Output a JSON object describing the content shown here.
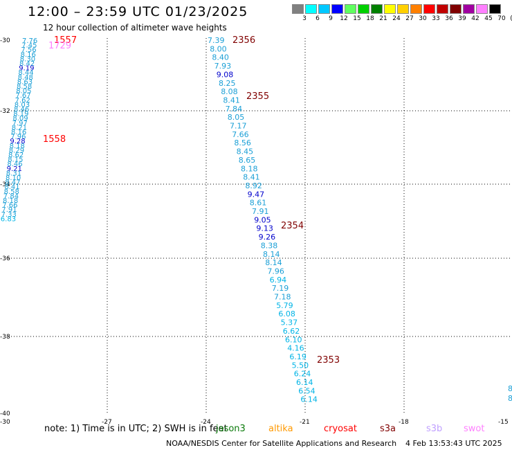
{
  "title": "12:00 – 23:59 UTC 01/23/2025",
  "subtitle": "12 hour collection of altimeter wave heights",
  "colorbar": {
    "unit": "(ft)",
    "labels": [
      "3",
      "6",
      "9",
      "12",
      "15",
      "18",
      "21",
      "24",
      "27",
      "30",
      "33",
      "36",
      "39",
      "42",
      "45",
      "70"
    ],
    "colors": [
      "#808080",
      "#00ffff",
      "#00c8ff",
      "#0000ff",
      "#60ff60",
      "#00d000",
      "#008000",
      "#ffff00",
      "#ffd000",
      "#ff8000",
      "#ff0000",
      "#c00000",
      "#800000",
      "#a000a0",
      "#ff80ff",
      "#000000"
    ]
  },
  "map": {
    "lat_ticks": [
      "-30",
      "-32",
      "-34",
      "-36",
      "-38",
      "-40"
    ],
    "lon_ticks": [
      "-30",
      "-27",
      "-24",
      "-21",
      "-18",
      "-15"
    ]
  },
  "tracks": {
    "west_cluster_values": [
      "7.76",
      "7.45",
      "7.56",
      "8.16",
      "8.30",
      "8.42",
      "9.19",
      "8.44",
      "8.48",
      "8.63",
      "8.58",
      "8.05",
      "7.67",
      "7.62",
      "8.03",
      "8.46",
      "8.19",
      "8.09",
      "7.97",
      "8.21",
      "8.16",
      "7.96",
      "9.28",
      "8.18",
      "8.29",
      "8.62",
      "8.15",
      "8.46",
      "9.21",
      "8.31",
      "8.10",
      "8.47",
      "8.41",
      "8.58",
      "7.84",
      "8.18",
      "7.66",
      "7.91",
      "7.33",
      "6.83"
    ],
    "main_track_values": [
      "7.39",
      "8.00",
      "8.40",
      "7.93",
      "9.08",
      "8.25",
      "8.08",
      "8.41",
      "7.84",
      "8.05",
      "7.17",
      "7.66",
      "8.56",
      "8.45",
      "8.65",
      "8.18",
      "8.41",
      "8.92",
      "9.47",
      "8.61",
      "7.91",
      "9.05",
      "9.13",
      "9.26",
      "8.38",
      "8.14",
      "8.14",
      "7.96",
      "6.94",
      "7.19",
      "7.18",
      "5.79",
      "6.08",
      "5.37",
      "6.62",
      "6.10",
      "4.16",
      "6.19",
      "5.50",
      "6.24",
      "6.14",
      "6.54",
      "6.14"
    ],
    "east_edge_values": [
      "8",
      "8."
    ],
    "time_labels": [
      {
        "text": "1557",
        "color": "#ff0000"
      },
      {
        "text": "1729",
        "color": "#ff80ff"
      },
      {
        "text": "1558",
        "color": "#ff0000"
      },
      {
        "text": "2356",
        "color": "#800000"
      },
      {
        "text": "2355",
        "color": "#800000"
      },
      {
        "text": "2354",
        "color": "#800000"
      },
      {
        "text": "2353",
        "color": "#800000"
      }
    ]
  },
  "note": {
    "text": "note:  1) Time is in UTC; 2) SWH is in feet",
    "overlay": "jason3"
  },
  "satellites": [
    {
      "name": "altika",
      "color": "#ff9900"
    },
    {
      "name": "cryosat",
      "color": "#ff0000"
    },
    {
      "name": "s3a",
      "color": "#800000"
    },
    {
      "name": "s3b",
      "color": "#c0a0ff"
    },
    {
      "name": "swot",
      "color": "#ff80ff"
    }
  ],
  "footer": {
    "credit": "NOAA/NESDIS Center for Satellite Applications and Research",
    "timestamp": "4 Feb 13:53:43 UTC 2025"
  }
}
